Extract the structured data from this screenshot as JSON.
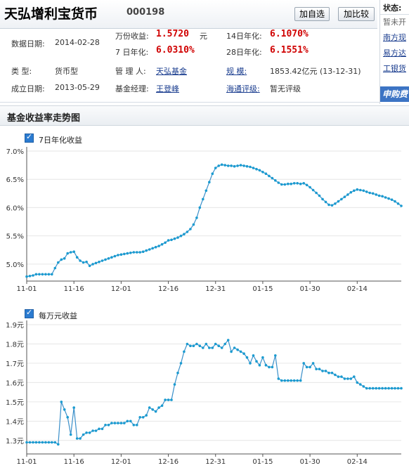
{
  "header": {
    "fund_name": "天弘增利宝货币",
    "fund_code": "000198",
    "watch_btn": "加自选",
    "compare_btn": "加比较"
  },
  "info": {
    "date_label": "数据日期:",
    "date_value": "2014-02-28",
    "wanfen_label": "万份收益:",
    "wanfen_value": "1.5720",
    "wanfen_unit": "元",
    "d14_label": "14日年化:",
    "d14_value": "6.1070%",
    "d7_label": "7 日年化:",
    "d7_value": "6.0310%",
    "d28_label": "28日年化:",
    "d28_value": "6.1551%",
    "type_label": "类     型:",
    "type_value": "货币型",
    "manager_label": "管 理 人:",
    "manager_value": "天弘基金",
    "scale_label": "规     模:",
    "scale_value": "1853.42亿元 (13-12-31)",
    "founded_label": "成立日期:",
    "founded_value": "2013-05-29",
    "fundmgr_label": "基金经理:",
    "fundmgr_value": "王登峰",
    "rating_label": "海通评级:",
    "rating_value": "暂无评级"
  },
  "right_panel": {
    "title": "状态:",
    "status": "暂未开",
    "links": [
      "南方现",
      "易方达",
      "工银货"
    ],
    "buy": "申购费"
  },
  "section_title": "基金收益率走势图",
  "colors": {
    "line": "#3a8fc9",
    "point": "#1a9bd0",
    "grid": "#e6e6e6",
    "red": "#d00000"
  },
  "chart_data": [
    {
      "type": "line",
      "legend": "7日年化收益",
      "yticks": [
        "7.0%",
        "6.5%",
        "6.0%",
        "5.5%",
        "5.0%"
      ],
      "ylim": [
        4.7,
        7.0
      ],
      "xticks": [
        "11-01",
        "11-16",
        "12-01",
        "12-16",
        "12-31",
        "01-15",
        "01-30",
        "02-14"
      ],
      "x_dates": [
        "11-01",
        "11-02",
        "11-03",
        "11-04",
        "11-05",
        "11-06",
        "11-07",
        "11-08",
        "11-09",
        "11-10",
        "11-11",
        "11-12",
        "11-13",
        "11-14",
        "11-15",
        "11-16",
        "11-17",
        "11-18",
        "11-19",
        "11-20",
        "11-21",
        "11-22",
        "11-23",
        "11-24",
        "11-25",
        "11-26",
        "11-27",
        "11-28",
        "11-29",
        "11-30",
        "12-01",
        "12-02",
        "12-03",
        "12-04",
        "12-05",
        "12-06",
        "12-07",
        "12-08",
        "12-09",
        "12-10",
        "12-11",
        "12-12",
        "12-13",
        "12-14",
        "12-15",
        "12-16",
        "12-17",
        "12-18",
        "12-19",
        "12-20",
        "12-21",
        "12-22",
        "12-23",
        "12-24",
        "12-25",
        "12-26",
        "12-27",
        "12-28",
        "12-29",
        "12-30",
        "12-31",
        "01-01",
        "01-02",
        "01-03",
        "01-04",
        "01-05",
        "01-06",
        "01-07",
        "01-08",
        "01-09",
        "01-10",
        "01-11",
        "01-12",
        "01-13",
        "01-14",
        "01-15",
        "01-16",
        "01-17",
        "01-18",
        "01-19",
        "01-20",
        "01-21",
        "01-22",
        "01-23",
        "01-24",
        "01-25",
        "01-26",
        "01-27",
        "01-28",
        "01-29",
        "01-30",
        "01-31",
        "02-01",
        "02-02",
        "02-03",
        "02-04",
        "02-05",
        "02-06",
        "02-07",
        "02-08",
        "02-09",
        "02-10",
        "02-11",
        "02-12",
        "02-13",
        "02-14",
        "02-15",
        "02-16",
        "02-17",
        "02-18",
        "02-19",
        "02-20",
        "02-21",
        "02-22",
        "02-23",
        "02-24",
        "02-25",
        "02-26",
        "02-27",
        "02-28"
      ],
      "values": [
        4.78,
        4.79,
        4.8,
        4.82,
        4.82,
        4.82,
        4.82,
        4.82,
        4.82,
        4.93,
        5.03,
        5.08,
        5.1,
        5.19,
        5.21,
        5.22,
        5.12,
        5.06,
        5.03,
        5.04,
        4.97,
        5.0,
        5.02,
        5.04,
        5.06,
        5.08,
        5.1,
        5.12,
        5.14,
        5.16,
        5.17,
        5.18,
        5.19,
        5.2,
        5.21,
        5.21,
        5.21,
        5.22,
        5.24,
        5.26,
        5.28,
        5.3,
        5.32,
        5.35,
        5.38,
        5.42,
        5.43,
        5.45,
        5.47,
        5.5,
        5.53,
        5.57,
        5.62,
        5.7,
        5.82,
        6.0,
        6.15,
        6.3,
        6.45,
        6.6,
        6.7,
        6.74,
        6.76,
        6.75,
        6.74,
        6.74,
        6.73,
        6.74,
        6.75,
        6.74,
        6.73,
        6.72,
        6.7,
        6.68,
        6.66,
        6.63,
        6.6,
        6.56,
        6.52,
        6.48,
        6.44,
        6.41,
        6.41,
        6.42,
        6.42,
        6.43,
        6.43,
        6.42,
        6.43,
        6.4,
        6.36,
        6.31,
        6.26,
        6.21,
        6.15,
        6.1,
        6.05,
        6.04,
        6.07,
        6.11,
        6.15,
        6.19,
        6.23,
        6.27,
        6.3,
        6.32,
        6.31,
        6.3,
        6.28,
        6.26,
        6.25,
        6.23,
        6.21,
        6.2,
        6.18,
        6.16,
        6.14,
        6.11,
        6.07,
        6.03
      ]
    },
    {
      "type": "line",
      "legend": "每万元收益",
      "yticks": [
        "1.9元",
        "1.8元",
        "1.7元",
        "1.6元",
        "1.5元",
        "1.4元",
        "1.3元"
      ],
      "ylim": [
        1.23,
        1.9
      ],
      "xticks": [
        "11-01",
        "11-16",
        "12-01",
        "12-16",
        "12-31",
        "01-15",
        "01-30",
        "02-14"
      ],
      "x_dates": [
        "11-01",
        "11-02",
        "11-03",
        "11-04",
        "11-05",
        "11-06",
        "11-07",
        "11-08",
        "11-09",
        "11-10",
        "11-11",
        "11-12",
        "11-13",
        "11-14",
        "11-15",
        "11-16",
        "11-17",
        "11-18",
        "11-19",
        "11-20",
        "11-21",
        "11-22",
        "11-23",
        "11-24",
        "11-25",
        "11-26",
        "11-27",
        "11-28",
        "11-29",
        "11-30",
        "12-01",
        "12-02",
        "12-03",
        "12-04",
        "12-05",
        "12-06",
        "12-07",
        "12-08",
        "12-09",
        "12-10",
        "12-11",
        "12-12",
        "12-13",
        "12-14",
        "12-15",
        "12-16",
        "12-17",
        "12-18",
        "12-19",
        "12-20",
        "12-21",
        "12-22",
        "12-23",
        "12-24",
        "12-25",
        "12-26",
        "12-27",
        "12-28",
        "12-29",
        "12-30",
        "12-31",
        "01-01",
        "01-02",
        "01-03",
        "01-04",
        "01-05",
        "01-06",
        "01-07",
        "01-08",
        "01-09",
        "01-10",
        "01-11",
        "01-12",
        "01-13",
        "01-14",
        "01-15",
        "01-16",
        "01-17",
        "01-18",
        "01-19",
        "01-20",
        "01-21",
        "01-22",
        "01-23",
        "01-24",
        "01-25",
        "01-26",
        "01-27",
        "01-28",
        "01-29",
        "01-30",
        "01-31",
        "02-01",
        "02-02",
        "02-03",
        "02-04",
        "02-05",
        "02-06",
        "02-07",
        "02-08",
        "02-09",
        "02-10",
        "02-11",
        "02-12",
        "02-13",
        "02-14",
        "02-15",
        "02-16",
        "02-17",
        "02-18",
        "02-19",
        "02-20",
        "02-21",
        "02-22",
        "02-23",
        "02-24",
        "02-25",
        "02-26",
        "02-27",
        "02-28"
      ],
      "values": [
        1.29,
        1.29,
        1.29,
        1.29,
        1.29,
        1.29,
        1.29,
        1.29,
        1.29,
        1.29,
        1.28,
        1.5,
        1.46,
        1.42,
        1.33,
        1.47,
        1.31,
        1.31,
        1.33,
        1.34,
        1.34,
        1.35,
        1.35,
        1.36,
        1.36,
        1.38,
        1.38,
        1.39,
        1.39,
        1.39,
        1.39,
        1.39,
        1.4,
        1.4,
        1.38,
        1.38,
        1.42,
        1.42,
        1.43,
        1.47,
        1.46,
        1.45,
        1.47,
        1.48,
        1.51,
        1.51,
        1.51,
        1.59,
        1.65,
        1.7,
        1.76,
        1.8,
        1.79,
        1.79,
        1.8,
        1.79,
        1.78,
        1.8,
        1.78,
        1.78,
        1.8,
        1.79,
        1.78,
        1.8,
        1.82,
        1.76,
        1.78,
        1.77,
        1.76,
        1.75,
        1.73,
        1.7,
        1.74,
        1.71,
        1.69,
        1.73,
        1.69,
        1.68,
        1.68,
        1.74,
        1.62,
        1.61,
        1.61,
        1.61,
        1.61,
        1.61,
        1.61,
        1.61,
        1.7,
        1.68,
        1.68,
        1.7,
        1.67,
        1.67,
        1.66,
        1.66,
        1.65,
        1.65,
        1.64,
        1.63,
        1.63,
        1.62,
        1.62,
        1.62,
        1.63,
        1.6,
        1.59,
        1.58,
        1.57,
        1.57,
        1.57,
        1.57,
        1.57,
        1.57,
        1.57,
        1.57,
        1.57,
        1.57,
        1.57,
        1.57
      ]
    }
  ]
}
